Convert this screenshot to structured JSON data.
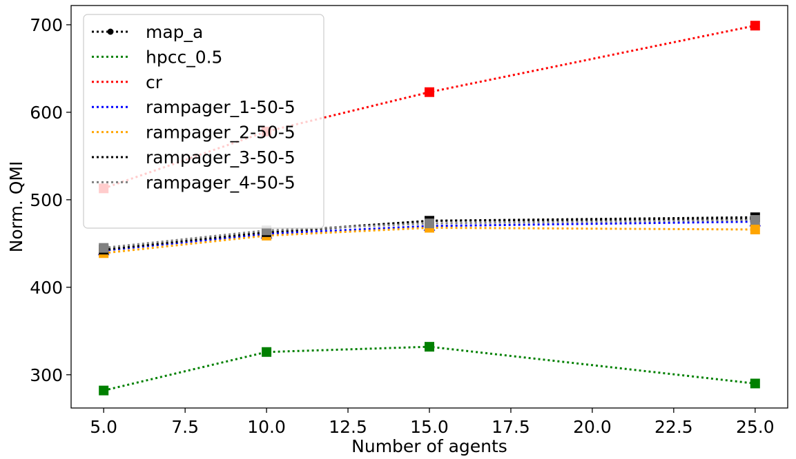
{
  "chart_data": {
    "type": "line",
    "xlabel": "Number of agents",
    "ylabel": "Norm. QMI",
    "xlim": [
      4.0,
      26.0
    ],
    "ylim": [
      262,
      722
    ],
    "xticks": [
      5.0,
      7.5,
      10.0,
      12.5,
      15.0,
      17.5,
      20.0,
      22.5,
      25.0
    ],
    "xtick_labels": [
      "5.0",
      "7.5",
      "10.0",
      "12.5",
      "15.0",
      "17.5",
      "20.0",
      "22.5",
      "25.0"
    ],
    "yticks": [
      300,
      400,
      500,
      600,
      700
    ],
    "ytick_labels": [
      "300",
      "400",
      "500",
      "600",
      "700"
    ],
    "grid": false,
    "legend_position": "top-left",
    "x": [
      5,
      10,
      15,
      25
    ],
    "series": [
      {
        "name": "map_a",
        "color": "#000000",
        "marker": "circle",
        "values": [
          442,
          462,
          476,
          478
        ]
      },
      {
        "name": "hpcc_0.5",
        "color": "#008000",
        "marker": "square",
        "values": [
          282,
          326,
          332,
          290
        ]
      },
      {
        "name": "cr",
        "color": "#ff0000",
        "marker": "square",
        "values": [
          513,
          578,
          623,
          699
        ]
      },
      {
        "name": "rampager_1-50-5",
        "color": "#0000ff",
        "marker": "triangle",
        "values": [
          442,
          461,
          470,
          475
        ]
      },
      {
        "name": "rampager_2-50-5",
        "color": "#ffa500",
        "marker": "square",
        "values": [
          439,
          459,
          468,
          466
        ]
      },
      {
        "name": "rampager_3-50-5",
        "color": "#000000",
        "marker": "square",
        "values": [
          443,
          463,
          476,
          480
        ]
      },
      {
        "name": "rampager_4-50-5",
        "color": "#808080",
        "marker": "square",
        "values": [
          445,
          465,
          473,
          477
        ]
      }
    ]
  }
}
